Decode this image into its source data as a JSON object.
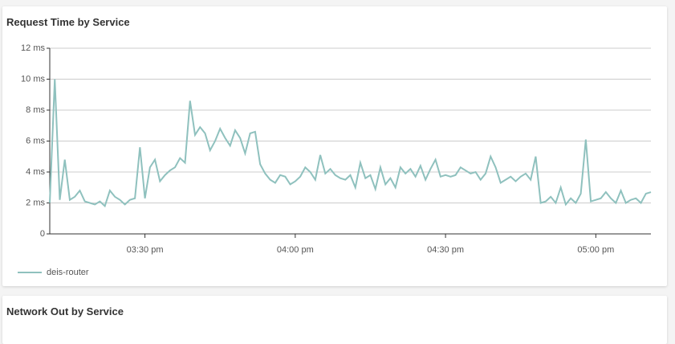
{
  "chart_data": {
    "type": "line",
    "title": "Request Time by Service",
    "x": [
      911,
      912,
      913,
      914,
      915,
      916,
      917,
      918,
      919,
      920,
      921,
      922,
      923,
      924,
      925,
      926,
      927,
      928,
      929,
      930,
      931,
      932,
      933,
      934,
      935,
      936,
      937,
      938,
      939,
      940,
      941,
      942,
      943,
      944,
      945,
      946,
      947,
      948,
      949,
      950,
      951,
      952,
      953,
      954,
      955,
      956,
      957,
      958,
      959,
      960,
      961,
      962,
      963,
      964,
      965,
      966,
      967,
      968,
      969,
      970,
      971,
      972,
      973,
      974,
      975,
      976,
      977,
      978,
      979,
      980,
      981,
      982,
      983,
      984,
      985,
      986,
      987,
      988,
      989,
      990,
      991,
      992,
      993,
      994,
      995,
      996,
      997,
      998,
      999,
      1000,
      1001,
      1002,
      1003,
      1004,
      1005,
      1006,
      1007,
      1008,
      1009,
      1010,
      1011,
      1012,
      1013,
      1014,
      1015,
      1016,
      1017,
      1018,
      1019,
      1020,
      1021,
      1022,
      1023,
      1024,
      1025,
      1026,
      1027,
      1028,
      1029,
      1030,
      1031
    ],
    "series": [
      {
        "name": "deis-router",
        "color": "#8fc1be",
        "values": [
          2,
          10,
          2.2,
          4.8,
          2.2,
          2.4,
          2.8,
          2.1,
          2.0,
          1.9,
          2.1,
          1.8,
          2.8,
          2.4,
          2.2,
          1.9,
          2.2,
          2.3,
          5.6,
          2.3,
          4.3,
          4.8,
          3.4,
          3.8,
          4.1,
          4.3,
          4.9,
          4.6,
          8.6,
          6.4,
          6.9,
          6.5,
          5.4,
          6.0,
          6.8,
          6.2,
          5.7,
          6.7,
          6.2,
          5.2,
          6.5,
          6.6,
          4.5,
          3.9,
          3.5,
          3.3,
          3.8,
          3.7,
          3.2,
          3.4,
          3.7,
          4.3,
          4.0,
          3.5,
          5.1,
          3.9,
          4.2,
          3.8,
          3.6,
          3.5,
          3.8,
          3.0,
          4.6,
          3.6,
          3.8,
          2.9,
          4.3,
          3.2,
          3.6,
          3.0,
          4.3,
          3.9,
          4.2,
          3.7,
          4.4,
          3.5,
          4.2,
          4.8,
          3.7,
          3.8,
          3.7,
          3.8,
          4.3,
          4.1,
          3.9,
          4.0,
          3.5,
          3.9,
          5.0,
          4.3,
          3.3,
          3.5,
          3.7,
          3.4,
          3.7,
          3.9,
          3.5,
          5.0,
          2.0,
          2.1,
          2.4,
          2.0,
          3.0,
          1.9,
          2.3,
          2.0,
          2.6,
          6.1,
          2.1,
          2.2,
          2.3,
          2.7,
          2.3,
          2.0,
          2.8,
          2.0,
          2.2,
          2.3,
          2.0,
          2.6,
          2.7
        ]
      }
    ],
    "xlim": [
      911,
      1031
    ],
    "xticks": [
      {
        "value": 930,
        "label": "03:30 pm"
      },
      {
        "value": 960,
        "label": "04:00 pm"
      },
      {
        "value": 990,
        "label": "04:30 pm"
      },
      {
        "value": 1020,
        "label": "05:00 pm"
      }
    ],
    "ylim": [
      0,
      12
    ],
    "yticks": [
      0,
      {
        "value": 2,
        "label": "2 ms"
      },
      {
        "value": 4,
        "label": "4 ms"
      },
      {
        "value": 6,
        "label": "6 ms"
      },
      {
        "value": 8,
        "label": "8 ms"
      },
      {
        "value": 10,
        "label": "10 ms"
      },
      {
        "value": 12,
        "label": "12 ms"
      }
    ],
    "grid": true
  },
  "next_panel": {
    "title": "Network Out by Service"
  }
}
